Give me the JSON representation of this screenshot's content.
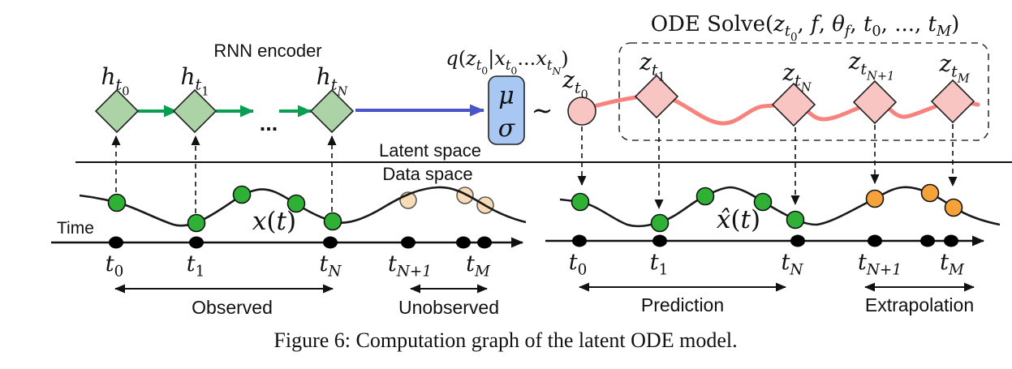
{
  "colors": {
    "green_node_fill": "#abd3a6",
    "green_arrow": "#0a9e53",
    "blue_arrow": "#4a55c7",
    "blue_box_fill": "#a9c7f3",
    "pink_fill": "#f9c5c2",
    "red_curve": "#f8837c",
    "green_dot": "#2fb136",
    "orange_dot": "#f6a23b",
    "tan_dot": "#f8dcb6",
    "ink": "#111111"
  },
  "labels": {
    "rnn_encoder": "RNN encoder",
    "latent_space": "Latent space",
    "data_space": "Data space",
    "time": "Time",
    "observed": "Observed",
    "unobserved": "Unobserved",
    "prediction": "Prediction",
    "extrapolation": "Extrapolation",
    "tilde": "∼",
    "ellipsis": "...",
    "mu": "μ",
    "sigma": "σ"
  },
  "math": {
    "h_t0": [
      {
        "t": "h"
      },
      {
        "t": "t",
        "lvl": 1
      },
      {
        "t": "0",
        "lvl": 2,
        "it": 0
      }
    ],
    "h_t1": [
      {
        "t": "h"
      },
      {
        "t": "t",
        "lvl": 1
      },
      {
        "t": "1",
        "lvl": 2,
        "it": 0
      }
    ],
    "h_tN": [
      {
        "t": "h"
      },
      {
        "t": "t",
        "lvl": 1
      },
      {
        "t": "N",
        "lvl": 2
      }
    ],
    "q_dist": [
      {
        "t": "q"
      },
      {
        "t": "(",
        "it": 0
      },
      {
        "t": "z"
      },
      {
        "t": "t",
        "lvl": 1
      },
      {
        "t": "0",
        "lvl": 2,
        "it": 0
      },
      {
        "t": "|",
        "it": 0
      },
      {
        "t": "x"
      },
      {
        "t": "t",
        "lvl": 1
      },
      {
        "t": "0",
        "lvl": 2,
        "it": 0
      },
      {
        "t": "...",
        "it": 0
      },
      {
        "t": "x"
      },
      {
        "t": "t",
        "lvl": 1
      },
      {
        "t": "N",
        "lvl": 2
      },
      {
        "t": ")",
        "it": 0
      }
    ],
    "z_t0": [
      {
        "t": "z"
      },
      {
        "t": "t",
        "lvl": 1
      },
      {
        "t": "0",
        "lvl": 2,
        "it": 0
      }
    ],
    "z_t1": [
      {
        "t": "z"
      },
      {
        "t": "t",
        "lvl": 1
      },
      {
        "t": "1",
        "lvl": 2,
        "it": 0
      }
    ],
    "z_tN": [
      {
        "t": "z"
      },
      {
        "t": "t",
        "lvl": 1
      },
      {
        "t": "N",
        "lvl": 2
      }
    ],
    "z_tN1": [
      {
        "t": "z"
      },
      {
        "t": "t",
        "lvl": 1
      },
      {
        "t": "N+1",
        "lvl": 2
      }
    ],
    "z_tM": [
      {
        "t": "z"
      },
      {
        "t": "t",
        "lvl": 1
      },
      {
        "t": "M",
        "lvl": 2
      }
    ],
    "ode_solve": [
      {
        "t": "ODE Solve(",
        "it": 0
      },
      {
        "t": "z"
      },
      {
        "t": "t",
        "lvl": 1
      },
      {
        "t": "0",
        "lvl": 2,
        "it": 0
      },
      {
        "t": ", ",
        "it": 0
      },
      {
        "t": "f"
      },
      {
        "t": ", ",
        "it": 0
      },
      {
        "t": "θ"
      },
      {
        "t": "f",
        "lvl": 1
      },
      {
        "t": ", ",
        "it": 0
      },
      {
        "t": "t"
      },
      {
        "t": "0",
        "lvl": 1,
        "it": 0
      },
      {
        "t": ", ..., ",
        "it": 0
      },
      {
        "t": "t"
      },
      {
        "t": "M",
        "lvl": 1
      },
      {
        "t": ")",
        "it": 0
      }
    ],
    "x_t": [
      {
        "t": "x"
      },
      {
        "t": "(",
        "it": 0
      },
      {
        "t": "t"
      },
      {
        "t": ")",
        "it": 0
      }
    ],
    "xhat_t": [
      {
        "t": "x̂"
      },
      {
        "t": "(",
        "it": 0
      },
      {
        "t": "t"
      },
      {
        "t": ")",
        "it": 0
      }
    ],
    "t0": [
      {
        "t": "t"
      },
      {
        "t": "0",
        "lvl": 1,
        "it": 0
      }
    ],
    "t1": [
      {
        "t": "t"
      },
      {
        "t": "1",
        "lvl": 1,
        "it": 0
      }
    ],
    "tN": [
      {
        "t": "t"
      },
      {
        "t": "N",
        "lvl": 1
      }
    ],
    "tN1": [
      {
        "t": "t"
      },
      {
        "t": "N+1",
        "lvl": 1
      }
    ],
    "tM": [
      {
        "t": "t"
      },
      {
        "t": "M",
        "lvl": 1
      }
    ]
  },
  "caption": "Figure 6: Computation graph of the latent ODE model."
}
